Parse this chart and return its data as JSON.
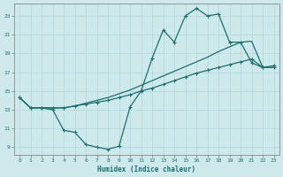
{
  "xlabel": "Humidex (Indice chaleur)",
  "xlim_min": -0.5,
  "xlim_max": 23.5,
  "ylim_min": 8.2,
  "ylim_max": 24.3,
  "yticks": [
    9,
    11,
    13,
    15,
    17,
    19,
    21,
    23
  ],
  "xticks": [
    0,
    1,
    2,
    3,
    4,
    5,
    6,
    7,
    8,
    9,
    10,
    11,
    12,
    13,
    14,
    15,
    16,
    17,
    18,
    19,
    20,
    21,
    22,
    23
  ],
  "bg_color": "#cde9ec",
  "line_color": "#1e6e6e",
  "grid_color": "#b8d8dc",
  "line1_x": [
    0,
    1,
    2,
    3,
    4,
    5,
    6,
    7,
    8,
    9,
    10,
    11,
    12,
    13,
    14,
    15,
    16,
    17,
    18,
    19,
    20,
    21,
    22,
    23
  ],
  "line1_y": [
    14.3,
    13.2,
    13.2,
    13.2,
    13.2,
    13.4,
    13.6,
    13.8,
    14.0,
    14.3,
    14.6,
    15.0,
    15.3,
    15.7,
    16.1,
    16.5,
    16.9,
    17.2,
    17.5,
    17.8,
    18.1,
    18.4,
    17.5,
    17.5
  ],
  "line2_x": [
    0,
    1,
    2,
    3,
    4,
    5,
    6,
    7,
    8,
    9,
    10,
    11,
    12,
    13,
    14,
    15,
    16,
    17,
    18,
    19,
    20,
    21,
    22,
    23
  ],
  "line2_y": [
    14.3,
    13.2,
    13.2,
    13.0,
    10.8,
    10.6,
    9.3,
    9.0,
    8.8,
    9.1,
    13.3,
    15.0,
    18.5,
    21.5,
    20.2,
    23.0,
    23.8,
    23.0,
    23.2,
    20.2,
    20.2,
    18.0,
    17.5,
    17.7
  ],
  "line3_x": [
    0,
    1,
    2,
    3,
    4,
    5,
    6,
    7,
    8,
    9,
    10,
    11,
    12,
    13,
    14,
    15,
    16,
    17,
    18,
    19,
    20,
    21,
    22,
    23
  ],
  "line3_y": [
    14.3,
    13.2,
    13.2,
    13.2,
    13.2,
    13.4,
    13.7,
    14.0,
    14.3,
    14.7,
    15.1,
    15.6,
    16.1,
    16.6,
    17.1,
    17.6,
    18.1,
    18.6,
    19.2,
    19.7,
    20.2,
    20.3,
    17.5,
    17.5
  ]
}
